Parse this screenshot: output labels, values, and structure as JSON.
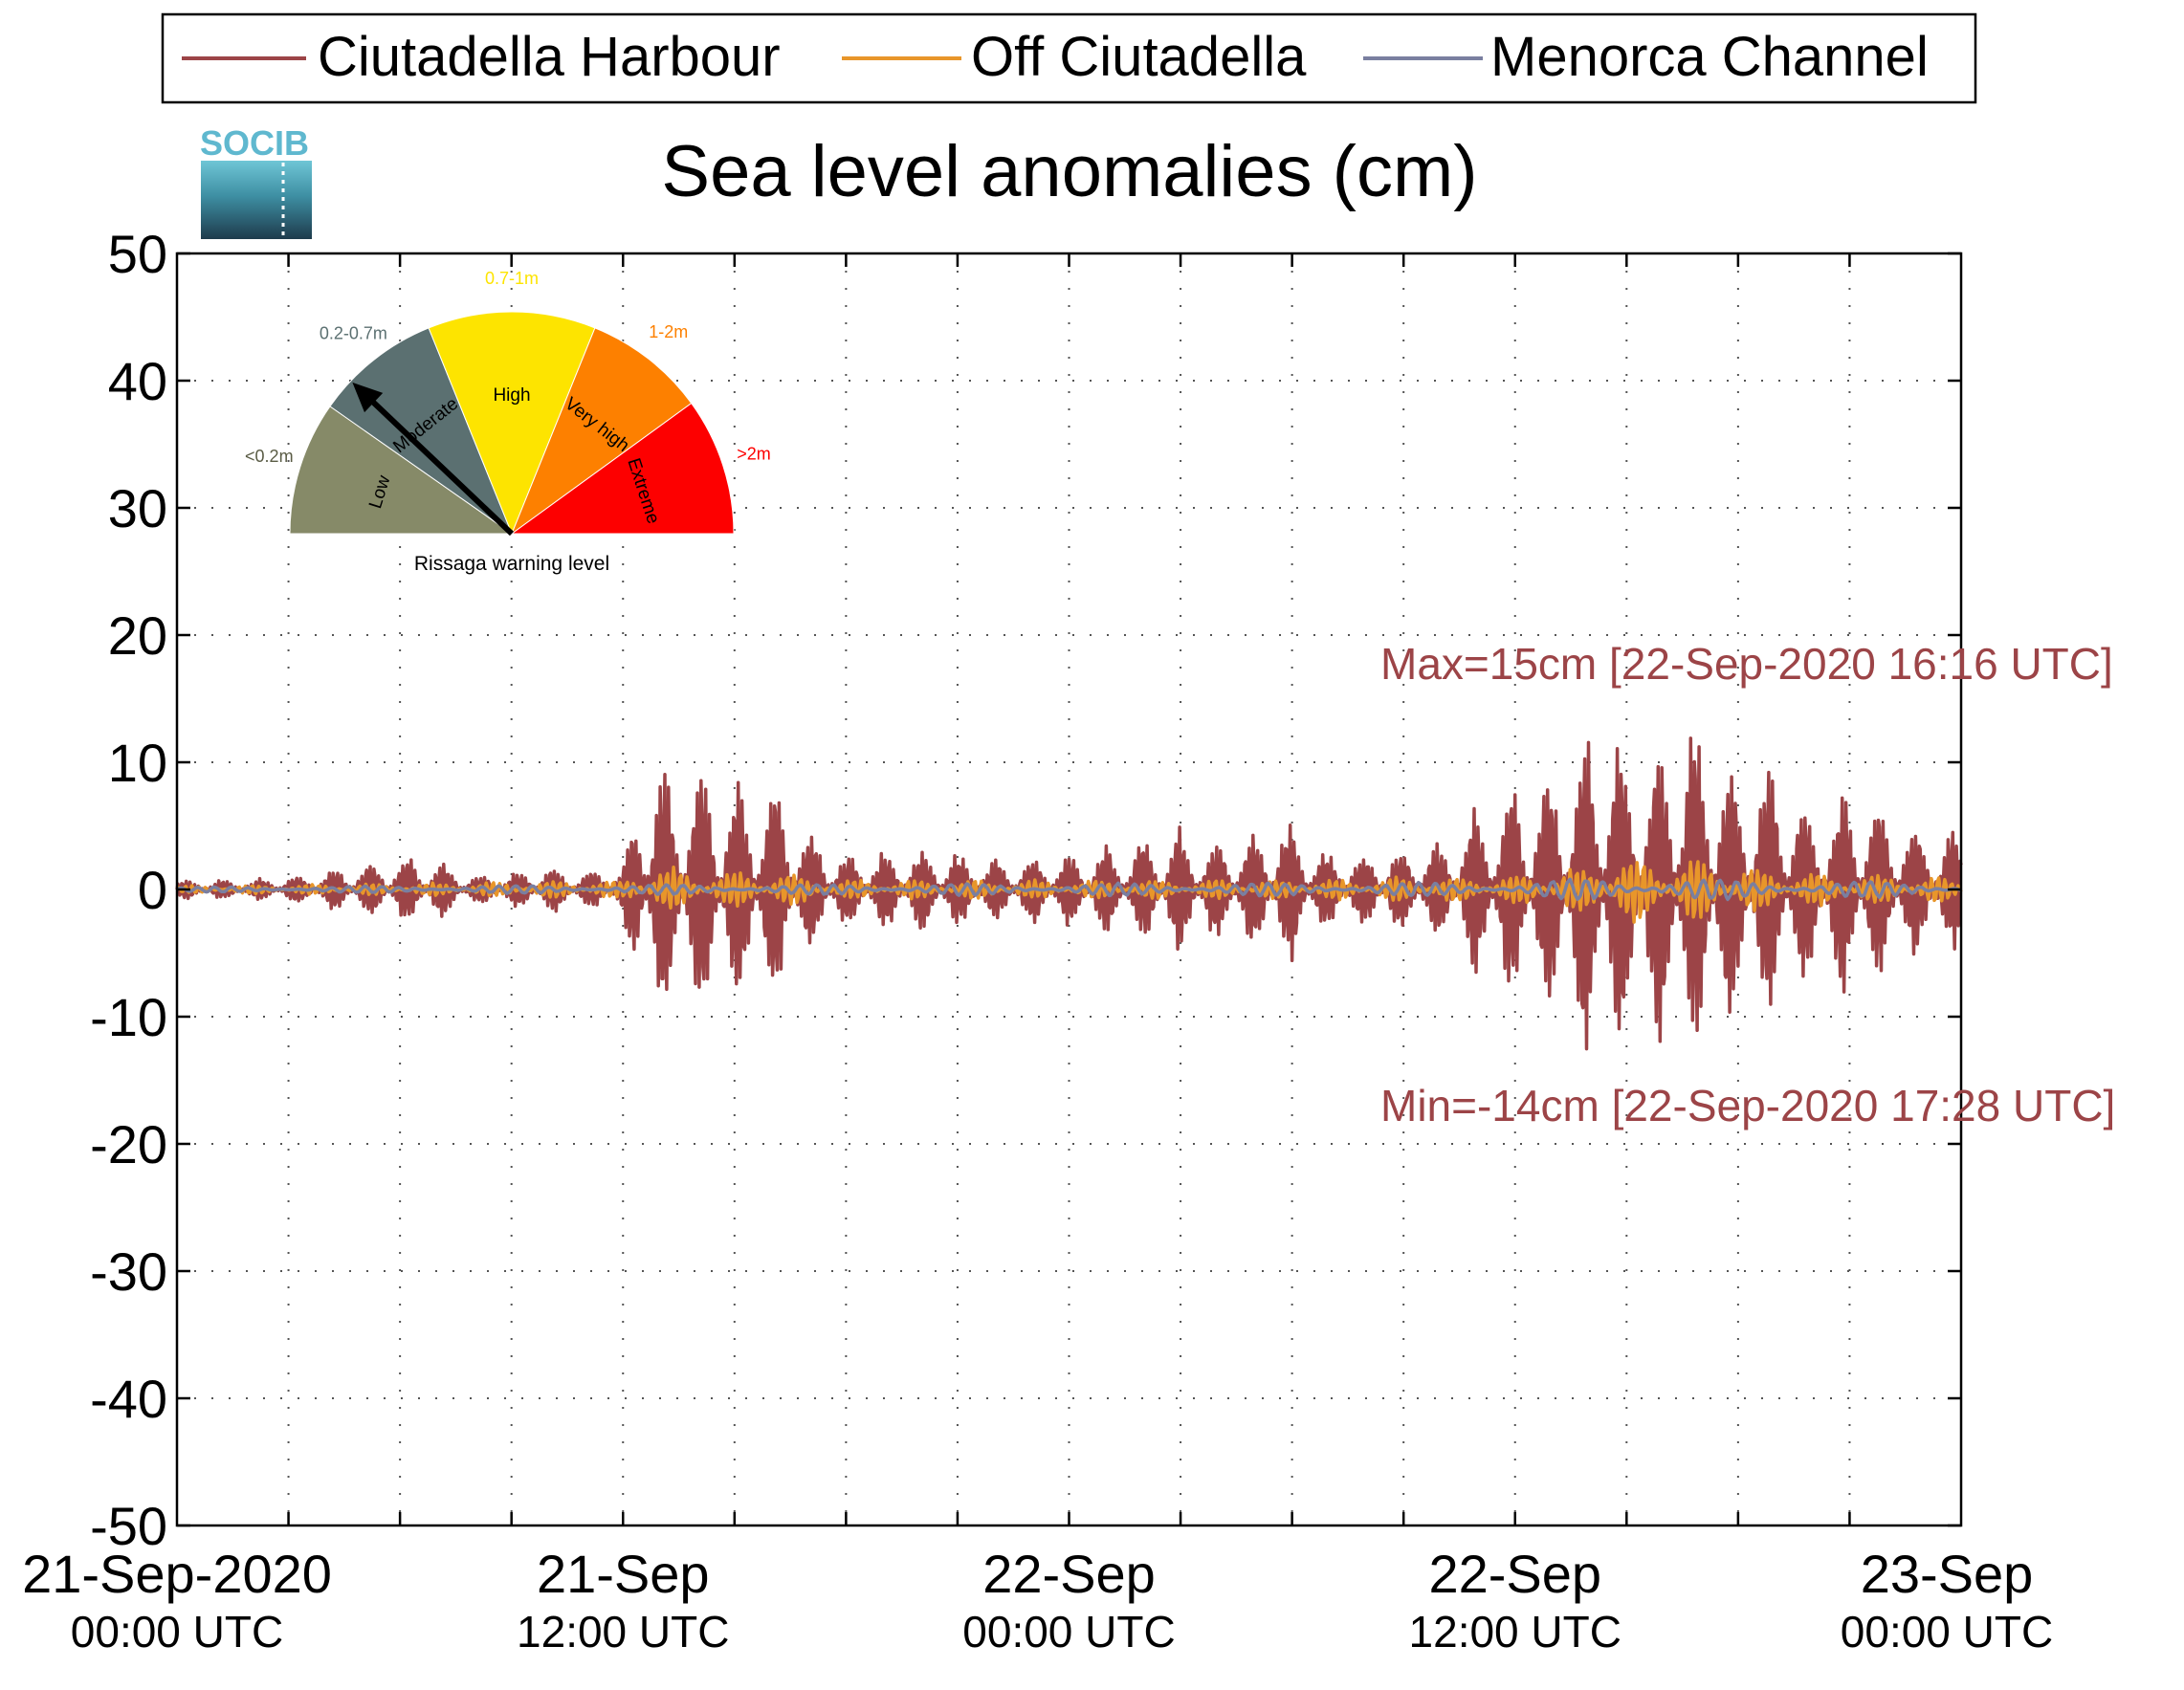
{
  "legend": {
    "entries": [
      {
        "label": "Ciutadella Harbour",
        "color": "#9c4447"
      },
      {
        "label": "Off Ciutadella",
        "color": "#e8962a"
      },
      {
        "label": "Menorca Channel",
        "color": "#7a7fa0"
      }
    ]
  },
  "logo": {
    "text": "SOCIB"
  },
  "gauge": {
    "title": "Rissaga warning level",
    "pointer_level": "Moderate",
    "segments": [
      {
        "name": "Low",
        "range": "<0.2m",
        "color": "#868a68"
      },
      {
        "name": "Moderate",
        "range": "0.2-0.7m",
        "color": "#5b7071"
      },
      {
        "name": "High",
        "range": "0.7-1m",
        "color": "#fde400"
      },
      {
        "name": "Very high",
        "range": "1-2m",
        "color": "#fd8000"
      },
      {
        "name": "Extreme",
        "range": ">2m",
        "color": "#fd0000"
      }
    ]
  },
  "annotations": {
    "max": "Max=15cm [22-Sep-2020 16:16 UTC]",
    "min": "Min=-14cm [22-Sep-2020 17:28 UTC]",
    "color": "#9c4447"
  },
  "chart_data": {
    "type": "line",
    "title": "Sea level anomalies (cm)",
    "xlabel": "",
    "ylabel": "",
    "ylim": [
      -50,
      50
    ],
    "xlim_hours": [
      0,
      48
    ],
    "grid": true,
    "legend_position": "top",
    "yticks": [
      -50,
      -40,
      -30,
      -20,
      -10,
      0,
      10,
      20,
      30,
      40,
      50
    ],
    "xtick_labels": [
      {
        "line1": "21-Sep-2020",
        "line2": "00:00 UTC"
      },
      {
        "line1": "21-Sep",
        "line2": "12:00 UTC"
      },
      {
        "line1": "22-Sep",
        "line2": "00:00 UTC"
      },
      {
        "line1": "22-Sep",
        "line2": "12:00 UTC"
      },
      {
        "line1": "23-Sep",
        "line2": "00:00 UTC"
      }
    ],
    "series": [
      {
        "name": "Ciutadella Harbour",
        "color": "#9c4447",
        "envelope_hours": [
          0,
          2,
          4,
          6,
          7,
          8,
          9,
          10,
          11,
          12,
          12.5,
          13,
          14,
          15,
          16,
          16.5,
          17,
          17.5,
          18,
          20,
          22,
          24,
          26,
          27,
          28,
          29,
          30,
          31,
          32,
          33,
          34,
          35,
          36,
          37,
          38,
          38.5,
          39,
          39.5,
          40,
          40.5,
          41,
          41.5,
          42,
          43,
          44,
          45,
          46,
          47,
          48
        ],
        "envelope_cm": [
          0.8,
          0.8,
          1.5,
          2.8,
          2.5,
          1.2,
          1.5,
          2.0,
          1.5,
          2.2,
          10,
          10.5,
          10.5,
          9,
          10,
          7,
          5,
          4,
          3,
          3.5,
          2.5,
          3,
          4,
          5,
          4,
          5,
          6,
          3,
          3,
          3.5,
          4,
          7,
          9,
          10,
          13.5,
          14.5,
          12,
          11,
          13,
          15,
          14,
          13.5,
          10,
          11,
          7,
          9,
          7,
          5,
          5
        ]
      },
      {
        "name": "Off Ciutadella",
        "color": "#e8962a",
        "envelope_hours": [
          0,
          6,
          12,
          12.5,
          14,
          16,
          18,
          24,
          30,
          36,
          38,
          38.5,
          39.5,
          40,
          41,
          42,
          44,
          46,
          48
        ],
        "envelope_cm": [
          0.3,
          0.5,
          0.8,
          2.2,
          1.5,
          1.5,
          0.8,
          0.8,
          0.8,
          1.2,
          2.0,
          3.5,
          2.5,
          3.0,
          2.5,
          2.0,
          1.5,
          1.2,
          1.0
        ]
      },
      {
        "name": "Menorca Channel",
        "color": "#7a7fa0",
        "envelope_hours": [
          0,
          12,
          24,
          36,
          38,
          40,
          42,
          48
        ],
        "envelope_cm": [
          0.2,
          0.4,
          0.5,
          0.6,
          1.0,
          1.0,
          0.8,
          0.6
        ]
      }
    ]
  }
}
